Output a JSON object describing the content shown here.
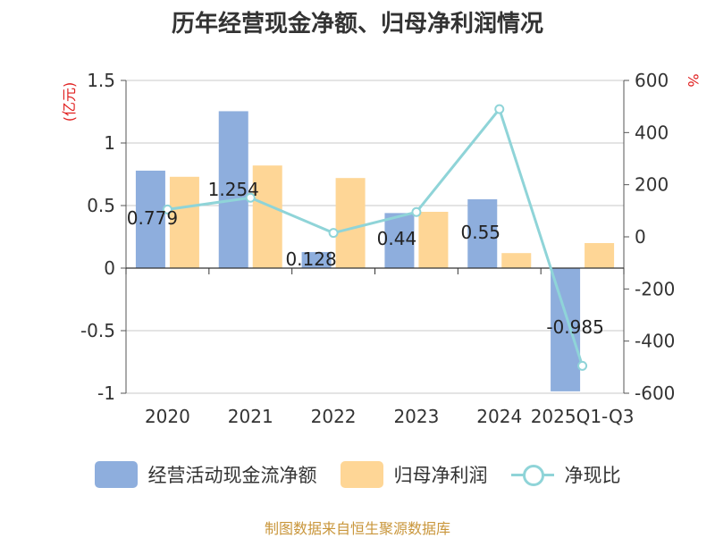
{
  "chart_data": {
    "type": "bar",
    "title": "历年经营现金净额、归母净利润情况",
    "categories": [
      "2020",
      "2021",
      "2022",
      "2023",
      "2024",
      "2025Q1-Q3"
    ],
    "series": [
      {
        "name": "经营活动现金流净额",
        "type": "bar",
        "axis": "left",
        "color": "#8eaedd",
        "values": [
          0.779,
          1.254,
          0.128,
          0.44,
          0.55,
          -0.985
        ],
        "labels": [
          "0.779",
          "1.254",
          "0.128",
          "0.44",
          "0.55",
          "-0.985"
        ]
      },
      {
        "name": "归母净利润",
        "type": "bar",
        "axis": "left",
        "color": "#fed696",
        "values": [
          0.73,
          0.82,
          0.72,
          0.45,
          0.12,
          0.2
        ]
      },
      {
        "name": "净现比",
        "type": "line",
        "axis": "right",
        "color": "#8fd4d8",
        "values": [
          105,
          150,
          15,
          95,
          490,
          -495
        ]
      }
    ],
    "yleft": {
      "label": "(亿元)",
      "lim": [
        -1,
        1.5
      ],
      "ticks": [
        1.5,
        1,
        0.5,
        0,
        -0.5,
        -1
      ],
      "tick_labels": [
        "1.5",
        "1",
        "0.5",
        "0",
        "-0.5",
        "-1"
      ]
    },
    "yright": {
      "label": "%",
      "lim": [
        -600,
        600
      ],
      "ticks": [
        600,
        400,
        200,
        0,
        -200,
        -400,
        -600
      ],
      "tick_labels": [
        "600",
        "400",
        "200",
        "0",
        "-200",
        "-400",
        "-600"
      ]
    },
    "grid": true,
    "legend_position": "bottom"
  },
  "legend": {
    "items": [
      {
        "label": "经营活动现金流净额",
        "color": "#8eaedd"
      },
      {
        "label": "归母净利润",
        "color": "#fed696"
      },
      {
        "label": "净现比",
        "color": "#8fd4d8"
      }
    ]
  },
  "source": "制图数据来自恒生聚源数据库"
}
